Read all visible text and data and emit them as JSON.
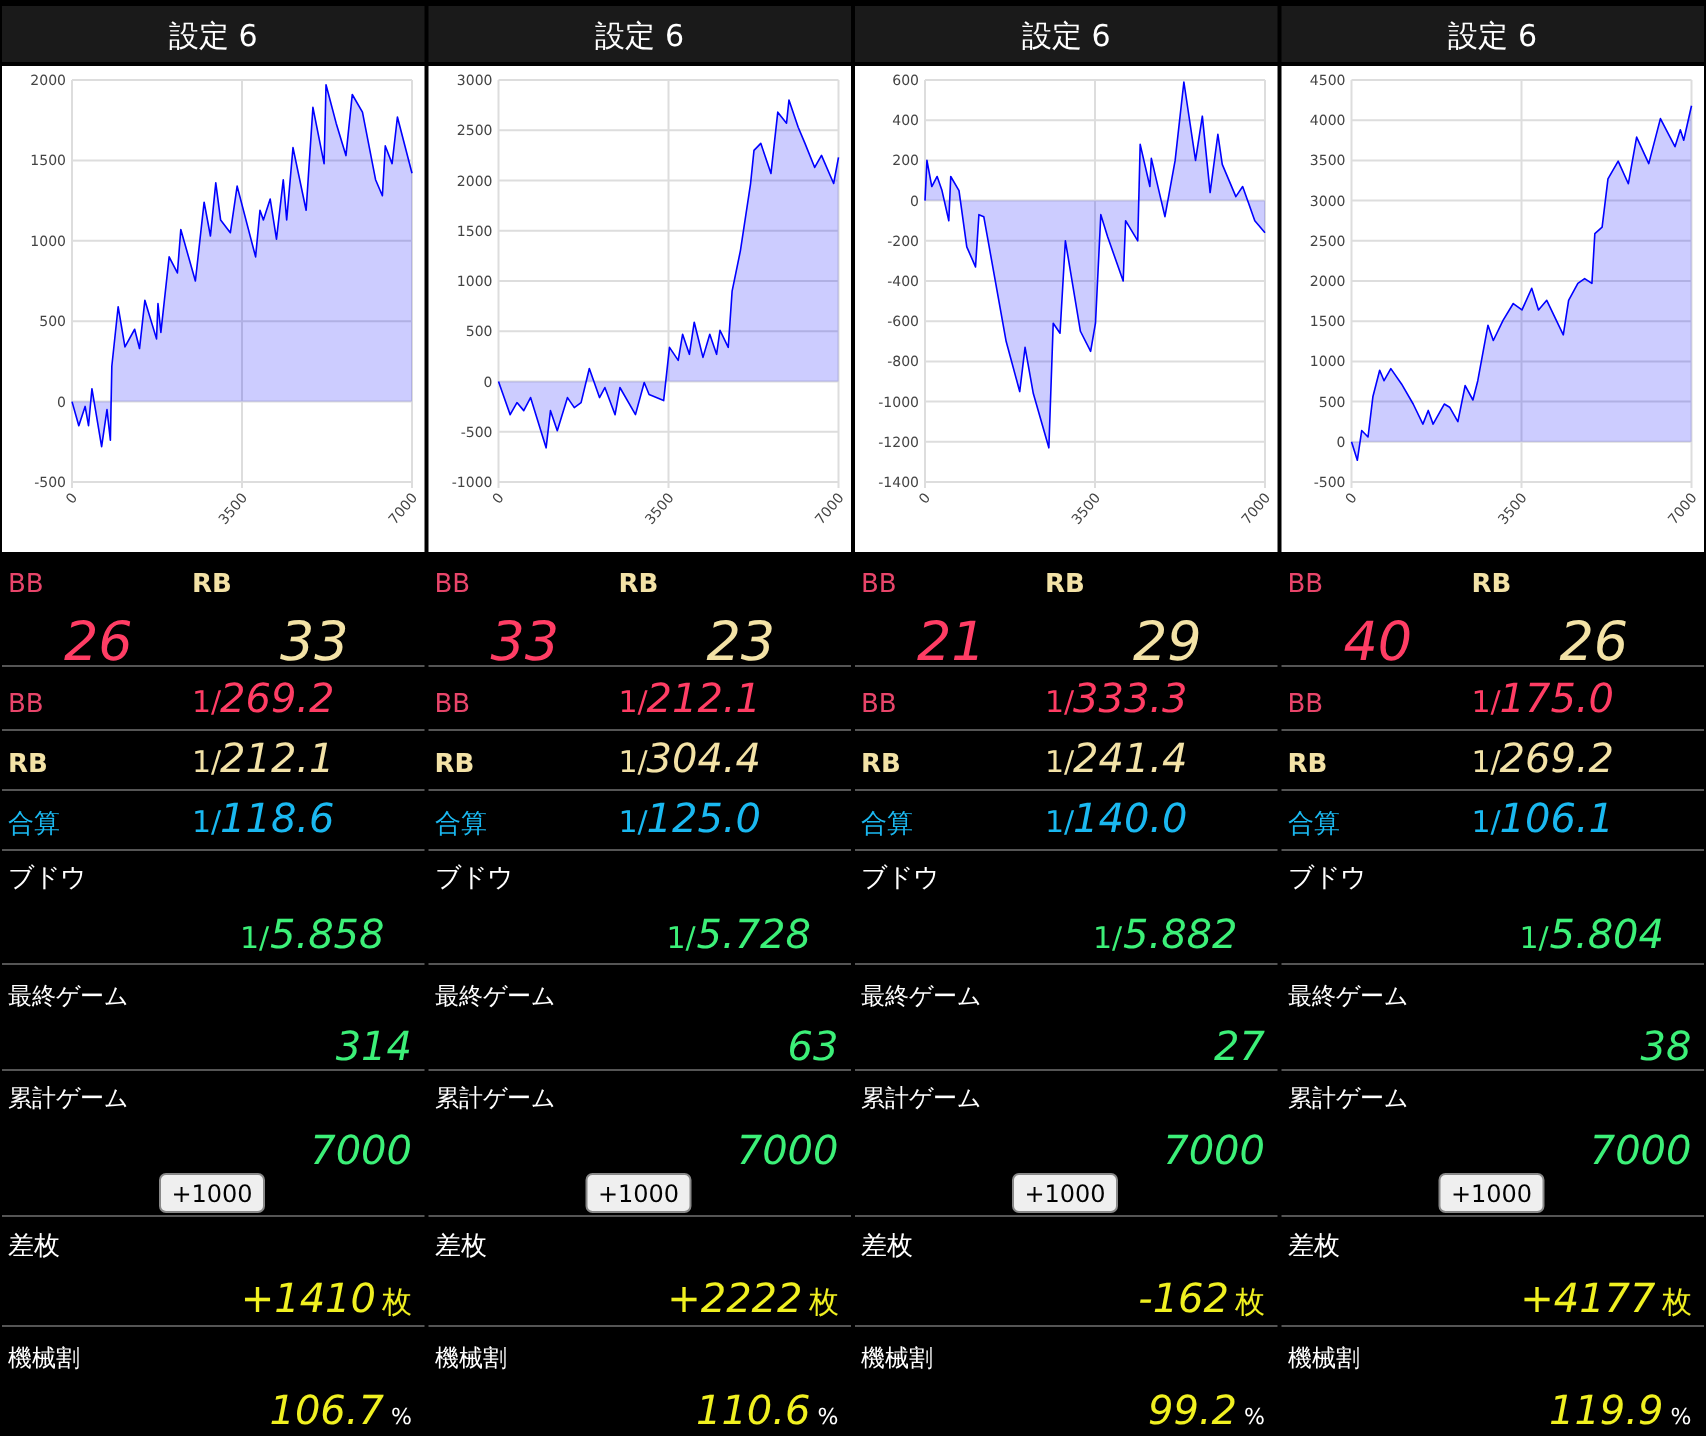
{
  "chart_data": [
    {
      "type": "area",
      "title": "設定 6",
      "color": "#0000ff",
      "xlim": [
        0,
        7000
      ],
      "xticks": [
        0,
        3500,
        7000
      ],
      "ylim": [
        -500,
        2000
      ],
      "yticks": [
        -500,
        0,
        500,
        1000,
        1500,
        2000
      ],
      "grid": true,
      "x": [
        0,
        140,
        270,
        340,
        410,
        610,
        720,
        790,
        820,
        950,
        1090,
        1290,
        1390,
        1500,
        1740,
        1770,
        1830,
        2000,
        2170,
        2240,
        2540,
        2720,
        2850,
        2960,
        3060,
        3260,
        3400,
        3780,
        3870,
        3940,
        4080,
        4210,
        4350,
        4420,
        4550,
        4820,
        4960,
        5190,
        5230,
        5440,
        5640,
        5770,
        5980,
        6250,
        6390,
        6450,
        6590,
        6700,
        7000
      ],
      "values": [
        0,
        -150,
        -30,
        -150,
        80,
        -280,
        -50,
        -240,
        220,
        590,
        340,
        450,
        330,
        630,
        390,
        610,
        430,
        900,
        800,
        1070,
        750,
        1240,
        1030,
        1360,
        1130,
        1050,
        1340,
        900,
        1190,
        1130,
        1260,
        1010,
        1380,
        1130,
        1580,
        1190,
        1830,
        1480,
        1970,
        1730,
        1530,
        1910,
        1800,
        1380,
        1280,
        1590,
        1480,
        1770,
        1420
      ]
    },
    {
      "type": "area",
      "title": "設定 6",
      "color": "#0000ff",
      "xlim": [
        0,
        7000
      ],
      "xticks": [
        0,
        3500,
        7000
      ],
      "ylim": [
        -1000,
        3000
      ],
      "yticks": [
        -1000,
        -500,
        0,
        500,
        1000,
        1500,
        2000,
        2500,
        3000
      ],
      "grid": true,
      "x": [
        0,
        240,
        380,
        520,
        660,
        980,
        1070,
        1210,
        1420,
        1560,
        1700,
        1870,
        2080,
        2190,
        2400,
        2500,
        2820,
        3000,
        3100,
        3400,
        3520,
        3700,
        3790,
        3930,
        4030,
        4210,
        4350,
        4490,
        4560,
        4730,
        4810,
        4980,
        5190,
        5260,
        5400,
        5610,
        5750,
        5930,
        5980,
        6170,
        6310,
        6510,
        6650,
        6900,
        7000
      ],
      "values": [
        0,
        -330,
        -210,
        -290,
        -160,
        -660,
        -290,
        -490,
        -160,
        -260,
        -210,
        130,
        -160,
        -60,
        -330,
        -60,
        -330,
        -10,
        -130,
        -190,
        340,
        210,
        470,
        270,
        590,
        240,
        470,
        270,
        510,
        340,
        900,
        1300,
        1970,
        2300,
        2370,
        2070,
        2680,
        2570,
        2800,
        2530,
        2370,
        2130,
        2250,
        1970,
        2230
      ]
    },
    {
      "type": "area",
      "title": "設定 6",
      "color": "#0000ff",
      "xlim": [
        0,
        7000
      ],
      "xticks": [
        0,
        3500,
        7000
      ],
      "ylim": [
        -1400,
        600
      ],
      "yticks": [
        -1400,
        -1200,
        -1000,
        -800,
        -600,
        -400,
        -200,
        0,
        200,
        400,
        600
      ],
      "grid": true,
      "x": [
        0,
        40,
        140,
        250,
        350,
        490,
        530,
        700,
        860,
        1040,
        1110,
        1210,
        1670,
        1950,
        2060,
        2230,
        2550,
        2640,
        2780,
        2890,
        3200,
        3410,
        3510,
        3620,
        3760,
        4080,
        4130,
        4380,
        4430,
        4630,
        4660,
        4940,
        5150,
        5330,
        5570,
        5710,
        5870,
        6030,
        6120,
        6400,
        6540,
        6790,
        7000
      ],
      "values": [
        0,
        200,
        70,
        120,
        50,
        -100,
        120,
        50,
        -230,
        -330,
        -70,
        -80,
        -700,
        -950,
        -730,
        -960,
        -1230,
        -610,
        -660,
        -200,
        -650,
        -750,
        -610,
        -70,
        -180,
        -400,
        -100,
        -200,
        280,
        70,
        210,
        -80,
        200,
        590,
        200,
        420,
        40,
        330,
        180,
        20,
        70,
        -100,
        -160
      ]
    },
    {
      "type": "area",
      "title": "設定 6",
      "color": "#0000ff",
      "xlim": [
        0,
        7000
      ],
      "xticks": [
        0,
        3500,
        7000
      ],
      "ylim": [
        -500,
        4500
      ],
      "yticks": [
        -500,
        0,
        500,
        1000,
        1500,
        2000,
        2500,
        3000,
        3500,
        4000,
        4500
      ],
      "grid": true,
      "x": [
        0,
        120,
        210,
        340,
        440,
        580,
        670,
        810,
        1030,
        1270,
        1470,
        1580,
        1680,
        1910,
        2020,
        2190,
        2340,
        2500,
        2600,
        2810,
        2920,
        3120,
        3330,
        3510,
        3710,
        3850,
        4020,
        4360,
        4470,
        4660,
        4800,
        4950,
        5010,
        5160,
        5280,
        5490,
        5700,
        5870,
        6120,
        6360,
        6660,
        6770,
        6840,
        7000
      ],
      "values": [
        0,
        -230,
        140,
        60,
        560,
        890,
        760,
        910,
        720,
        470,
        220,
        390,
        220,
        470,
        430,
        250,
        700,
        520,
        760,
        1450,
        1260,
        1510,
        1720,
        1640,
        1910,
        1640,
        1760,
        1330,
        1760,
        1970,
        2030,
        1970,
        2590,
        2670,
        3270,
        3490,
        3210,
        3790,
        3460,
        4020,
        3670,
        3880,
        3750,
        4180
      ]
    },
    {
      "type": "other",
      "annotations": [
        "BB",
        "RB",
        "26",
        "33",
        "BB",
        "1/",
        "269.2",
        "RB",
        "1/",
        "212.1",
        "合算",
        "1/",
        "118.6",
        "ブドウ",
        "1/",
        "5.858",
        "最終ゲーム",
        "314",
        "累計ゲーム",
        "7000",
        "+1000",
        "差枚",
        "+1410",
        "枚",
        "機械割",
        "106.7",
        "%"
      ]
    },
    {
      "type": "other",
      "annotations": [
        "BB",
        "RB",
        "33",
        "23",
        "BB",
        "1/",
        "212.1",
        "RB",
        "1/",
        "304.4",
        "合算",
        "1/",
        "125.0",
        "ブドウ",
        "1/",
        "5.728",
        "最終ゲーム",
        "63",
        "累計ゲーム",
        "7000",
        "+1000",
        "差枚",
        "+2222",
        "枚",
        "機械割",
        "110.6",
        "%"
      ]
    },
    {
      "type": "other",
      "annotations": [
        "BB",
        "RB",
        "21",
        "29",
        "BB",
        "1/",
        "333.3",
        "RB",
        "1/",
        "241.4",
        "合算",
        "1/",
        "140.0",
        "ブドウ",
        "1/",
        "5.882",
        "最終ゲーム",
        "27",
        "累計ゲーム",
        "7000",
        "+1000",
        "差枚",
        "-162",
        "枚",
        "機械割",
        "99.2",
        "%"
      ]
    },
    {
      "type": "other",
      "annotations": [
        "BB",
        "RB",
        "40",
        "26",
        "BB",
        "1/",
        "175.0",
        "RB",
        "1/",
        "269.2",
        "合算",
        "1/",
        "106.1",
        "ブドウ",
        "1/",
        "5.804",
        "最終ゲーム",
        "38",
        "累計ゲーム",
        "7000",
        "+1000",
        "差枚",
        "+4177",
        "枚",
        "機械割",
        "119.9",
        "%"
      ]
    }
  ]
}
